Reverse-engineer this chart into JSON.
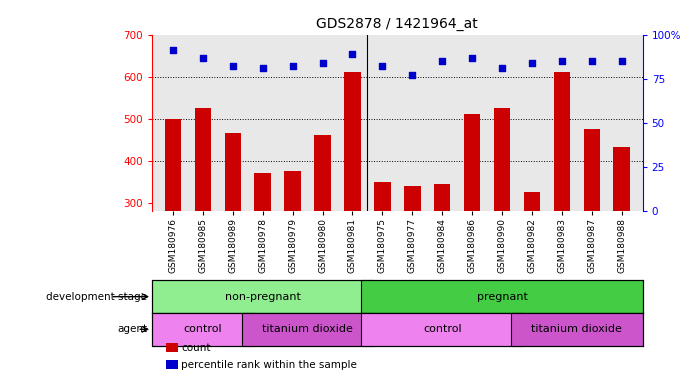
{
  "title": "GDS2878 / 1421964_at",
  "samples": [
    "GSM180976",
    "GSM180985",
    "GSM180989",
    "GSM180978",
    "GSM180979",
    "GSM180980",
    "GSM180981",
    "GSM180975",
    "GSM180977",
    "GSM180984",
    "GSM180986",
    "GSM180990",
    "GSM180982",
    "GSM180983",
    "GSM180987",
    "GSM180988"
  ],
  "counts": [
    500,
    525,
    465,
    372,
    375,
    460,
    610,
    350,
    340,
    345,
    510,
    525,
    325,
    610,
    475,
    432
  ],
  "percentiles": [
    91,
    87,
    82,
    81,
    82,
    84,
    89,
    82,
    77,
    85,
    87,
    81,
    84,
    85,
    85,
    85
  ],
  "ylim_left": [
    280,
    700
  ],
  "ylim_right": [
    0,
    100
  ],
  "yticks_left": [
    300,
    400,
    500,
    600,
    700
  ],
  "yticks_right": [
    0,
    25,
    50,
    75,
    100
  ],
  "bar_color": "#cc0000",
  "dot_color": "#0000cc",
  "dev_stage_groups": [
    {
      "text": "non-pregnant",
      "start": 0,
      "end": 7,
      "color": "#90EE90"
    },
    {
      "text": "pregnant",
      "start": 7,
      "end": 16,
      "color": "#44CC44"
    }
  ],
  "agent_groups": [
    {
      "text": "control",
      "start": 0,
      "end": 3,
      "color": "#EE82EE"
    },
    {
      "text": "titanium dioxide",
      "start": 3,
      "end": 7,
      "color": "#CC55CC"
    },
    {
      "text": "control",
      "start": 7,
      "end": 12,
      "color": "#EE82EE"
    },
    {
      "text": "titanium dioxide",
      "start": 12,
      "end": 16,
      "color": "#CC55CC"
    }
  ],
  "legend_items": [
    {
      "color": "#cc0000",
      "label": "count"
    },
    {
      "color": "#0000cc",
      "label": "percentile rank within the sample"
    }
  ],
  "x_tick_fontsize": 6.5,
  "title_fontsize": 10,
  "bar_width": 0.55,
  "dot_size": 22
}
